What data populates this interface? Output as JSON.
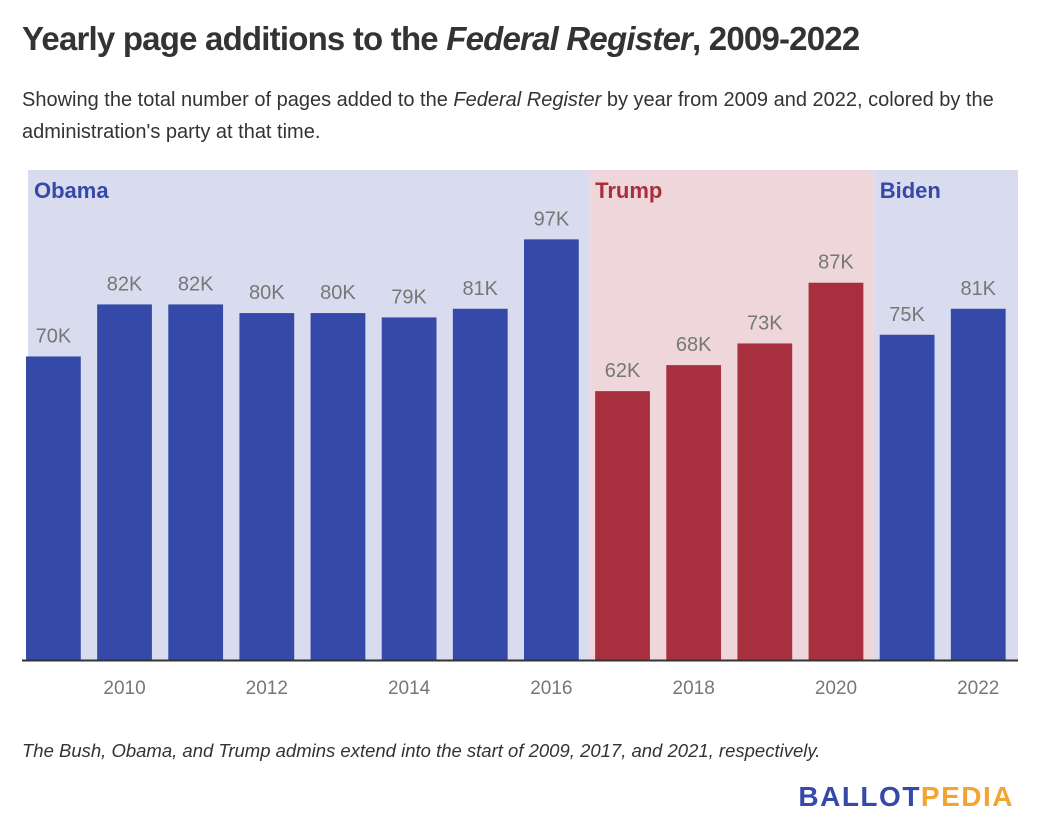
{
  "title": {
    "prefix": "Yearly page additions to the ",
    "italic": "Federal Register",
    "suffix": ", 2009-2022"
  },
  "subtitle": {
    "prefix": "Showing the total number of pages added to the ",
    "italic": "Federal Register",
    "suffix": " by year from 2009 and 2022, colored by the administration's party at that time."
  },
  "footnote": "The Bush, Obama, and Trump admins extend into the start of 2009, 2017, and 2021, respectively.",
  "logo": {
    "part1": "BALLOT",
    "part2": "PEDIA"
  },
  "colors": {
    "democrat_bar": "#3549a8",
    "republican_bar": "#a82f3e",
    "democrat_band": "#d8dcee",
    "republican_band": "#efd6da",
    "value_label": "#777777",
    "axis": "#333333",
    "tick_label": "#777777"
  },
  "chart_data": {
    "type": "bar",
    "title": "Yearly page additions to the Federal Register, 2009-2022",
    "xlabel": "",
    "ylabel": "",
    "categories": [
      "2009",
      "2010",
      "2011",
      "2012",
      "2013",
      "2014",
      "2015",
      "2016",
      "2017",
      "2018",
      "2019",
      "2020",
      "2021",
      "2022"
    ],
    "values": [
      70,
      82,
      82,
      80,
      80,
      79,
      81,
      97,
      62,
      68,
      73,
      87,
      75,
      81
    ],
    "value_unit": "thousand pages",
    "data_labels": [
      "70K",
      "82K",
      "82K",
      "80K",
      "80K",
      "79K",
      "81K",
      "97K",
      "62K",
      "68K",
      "73K",
      "87K",
      "75K",
      "81K"
    ],
    "party": [
      "D",
      "D",
      "D",
      "D",
      "D",
      "D",
      "D",
      "D",
      "R",
      "R",
      "R",
      "R",
      "D",
      "D"
    ],
    "x_tick_labels": [
      "2010",
      "2012",
      "2014",
      "2016",
      "2018",
      "2020",
      "2022"
    ],
    "ylim": [
      0,
      113
    ],
    "grid": false,
    "administrations": [
      {
        "name": "Obama",
        "party": "D",
        "start": 2009,
        "end": 2016
      },
      {
        "name": "Trump",
        "party": "R",
        "start": 2017,
        "end": 2020
      },
      {
        "name": "Biden",
        "party": "D",
        "start": 2021,
        "end": 2022
      }
    ]
  }
}
